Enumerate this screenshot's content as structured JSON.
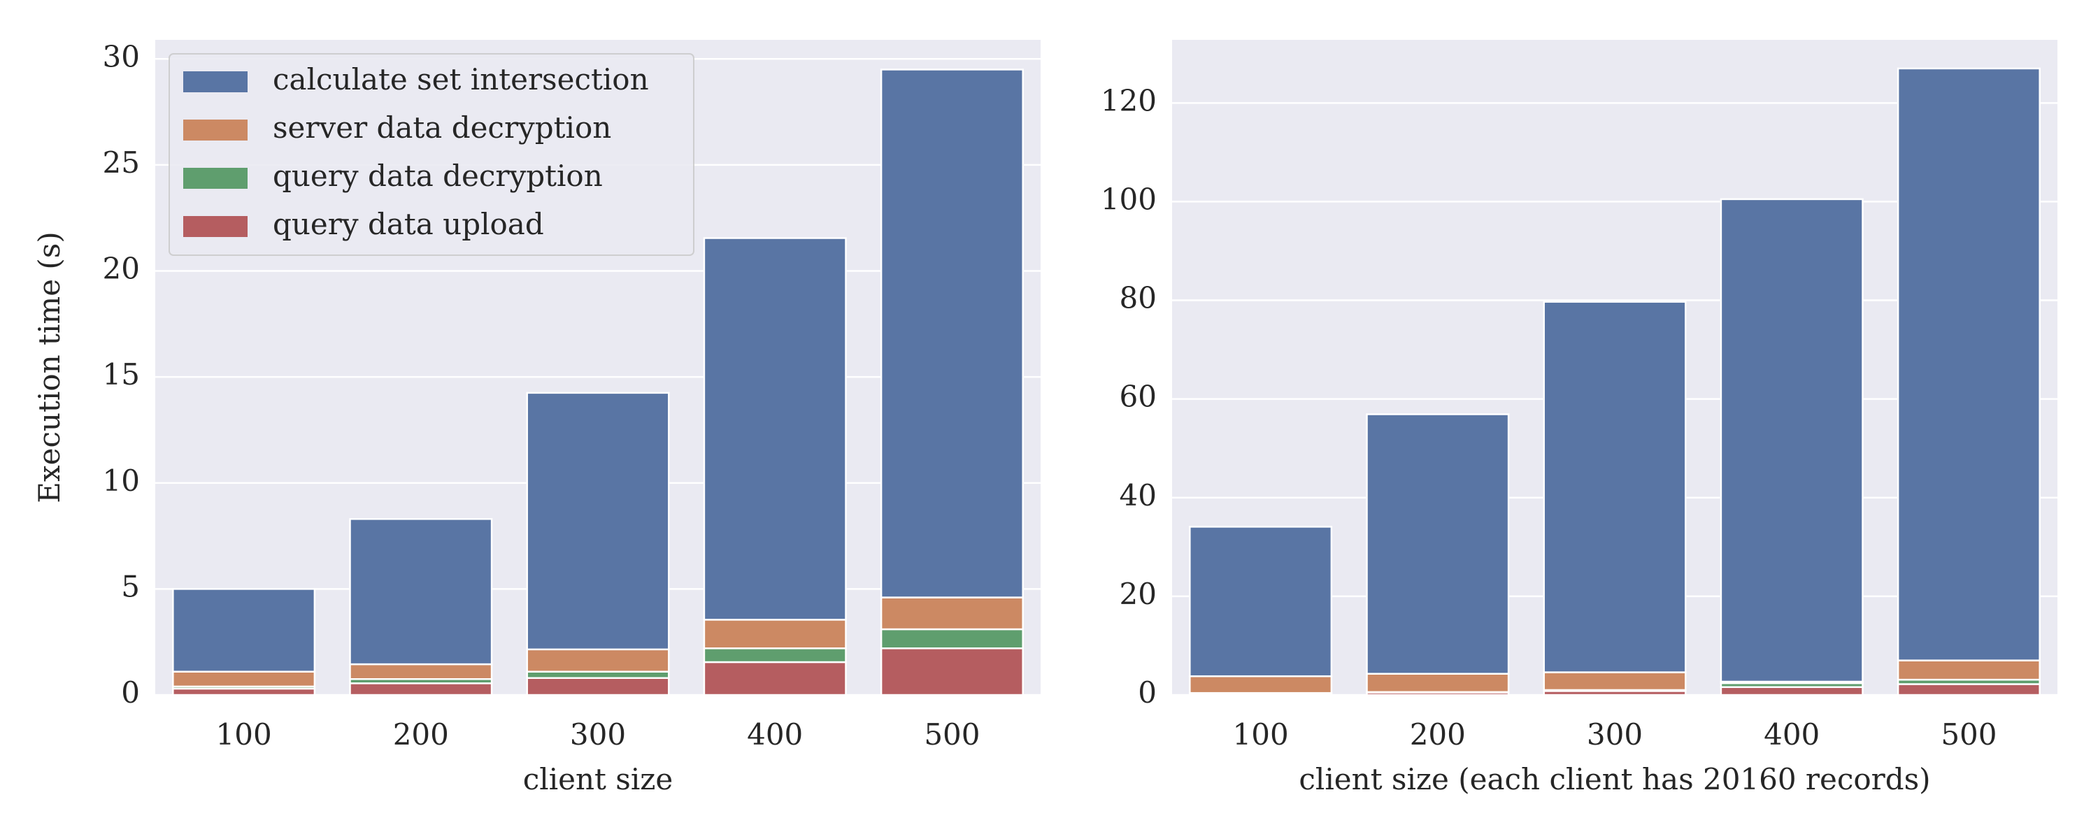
{
  "chart_data": [
    {
      "type": "stacked_bar",
      "ylabel": "Execution time (s)",
      "xlabel": "client size",
      "categories": [
        "100",
        "200",
        "300",
        "400",
        "500"
      ],
      "ylim": [
        0,
        30.9
      ],
      "yticks": [
        0,
        5,
        10,
        15,
        20,
        25,
        30
      ],
      "grid": true,
      "legend": "upper left",
      "series": [
        {
          "name": "calculate set intersection",
          "color": "#5975a4",
          "values": [
            3.9,
            6.85,
            12.1,
            18.0,
            24.9
          ]
        },
        {
          "name": "server data decryption",
          "color": "#cc8963",
          "values": [
            0.7,
            0.7,
            1.05,
            1.35,
            1.5
          ]
        },
        {
          "name": "query data decryption",
          "color": "#5f9e6e",
          "values": [
            0.1,
            0.2,
            0.3,
            0.65,
            0.9
          ]
        },
        {
          "name": "query data upload",
          "color": "#b55d60",
          "values": [
            0.3,
            0.55,
            0.8,
            1.55,
            2.2
          ]
        }
      ]
    },
    {
      "type": "stacked_bar",
      "xlabel": "client size (each client has 20160 records)",
      "categories": [
        "100",
        "200",
        "300",
        "400",
        "500"
      ],
      "ylim": [
        0,
        132.8
      ],
      "yticks": [
        0,
        20,
        40,
        60,
        80,
        100,
        120
      ],
      "grid": true,
      "series": [
        {
          "color": "#5975a4",
          "values": [
            30.3,
            52.6,
            75.1,
            97.8,
            120.0
          ]
        },
        {
          "color": "#cc8963",
          "values": [
            3.4,
            3.7,
            3.6,
            0.3,
            3.9
          ]
        },
        {
          "color": "#5f9e6e",
          "values": [
            0.1,
            0.1,
            0.2,
            0.8,
            0.9
          ]
        },
        {
          "color": "#b55d60",
          "values": [
            0.3,
            0.5,
            0.8,
            1.6,
            2.2
          ]
        }
      ]
    }
  ]
}
